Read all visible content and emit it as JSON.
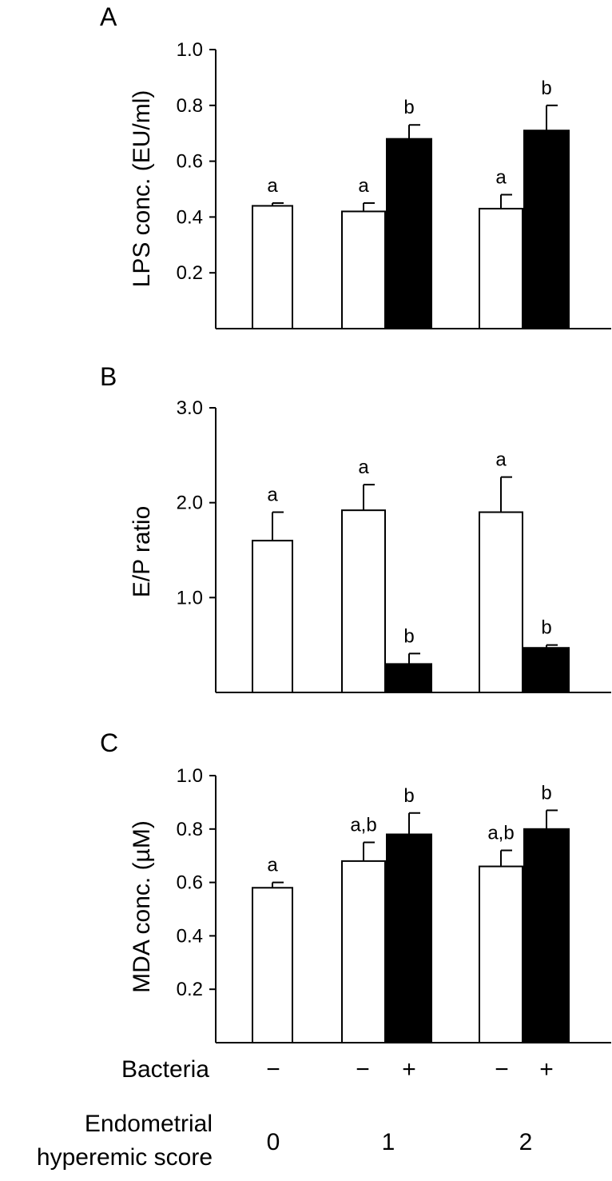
{
  "chart_data": [
    {
      "type": "bar",
      "panel": "A",
      "ylabel": "LPS conc. (EU/ml)",
      "ylim": [
        0,
        1.0
      ],
      "yticks": [
        0.2,
        0.4,
        0.6,
        0.8,
        1.0
      ],
      "ytick_labels": [
        "0.2",
        "0.4",
        "0.6",
        "0.8",
        "1.0"
      ],
      "categories": [
        "0",
        "1",
        "2"
      ],
      "series": [
        {
          "name": "−",
          "fill": "#ffffff",
          "values": [
            0.44,
            0.42,
            0.43
          ],
          "errors": [
            0.01,
            0.03,
            0.05
          ],
          "labels": [
            "a",
            "a",
            "a"
          ]
        },
        {
          "name": "+",
          "fill": "#000000",
          "values": [
            null,
            0.68,
            0.71
          ],
          "errors": [
            null,
            0.05,
            0.09
          ],
          "labels": [
            "",
            "b",
            "b"
          ]
        }
      ]
    },
    {
      "type": "bar",
      "panel": "B",
      "ylabel": "E/P ratio",
      "ylim": [
        0,
        3.0
      ],
      "yticks": [
        1.0,
        2.0,
        3.0
      ],
      "ytick_labels": [
        "1.0",
        "2.0",
        "3.0"
      ],
      "categories": [
        "0",
        "1",
        "2"
      ],
      "series": [
        {
          "name": "−",
          "fill": "#ffffff",
          "values": [
            1.6,
            1.92,
            1.9
          ],
          "errors": [
            0.3,
            0.27,
            0.37
          ],
          "labels": [
            "a",
            "a",
            "a"
          ]
        },
        {
          "name": "+",
          "fill": "#000000",
          "values": [
            null,
            0.3,
            0.47
          ],
          "errors": [
            null,
            0.11,
            0.03
          ],
          "labels": [
            "",
            "b",
            "b"
          ]
        }
      ]
    },
    {
      "type": "bar",
      "panel": "C",
      "ylabel": "MDA conc. (µM)",
      "ylim": [
        0,
        1.0
      ],
      "yticks": [
        0.2,
        0.4,
        0.6,
        0.8,
        1.0
      ],
      "ytick_labels": [
        "0.2",
        "0.4",
        "0.6",
        "0.8",
        "1.0"
      ],
      "categories": [
        "0",
        "1",
        "2"
      ],
      "series": [
        {
          "name": "−",
          "fill": "#ffffff",
          "values": [
            0.58,
            0.68,
            0.66
          ],
          "errors": [
            0.02,
            0.07,
            0.06
          ],
          "labels": [
            "a",
            "a,b",
            "a,b"
          ]
        },
        {
          "name": "+",
          "fill": "#000000",
          "values": [
            null,
            0.78,
            0.8
          ],
          "errors": [
            null,
            0.08,
            0.07
          ],
          "labels": [
            "",
            "b",
            "b"
          ]
        }
      ]
    }
  ],
  "bottom": {
    "bacteria_label": "Bacteria",
    "bacteria_signs": [
      "−",
      "−",
      "+",
      "−",
      "+"
    ],
    "score_label_line1": "Endometrial",
    "score_label_line2": "hyperemic score",
    "scores": [
      "0",
      "1",
      "2"
    ]
  }
}
